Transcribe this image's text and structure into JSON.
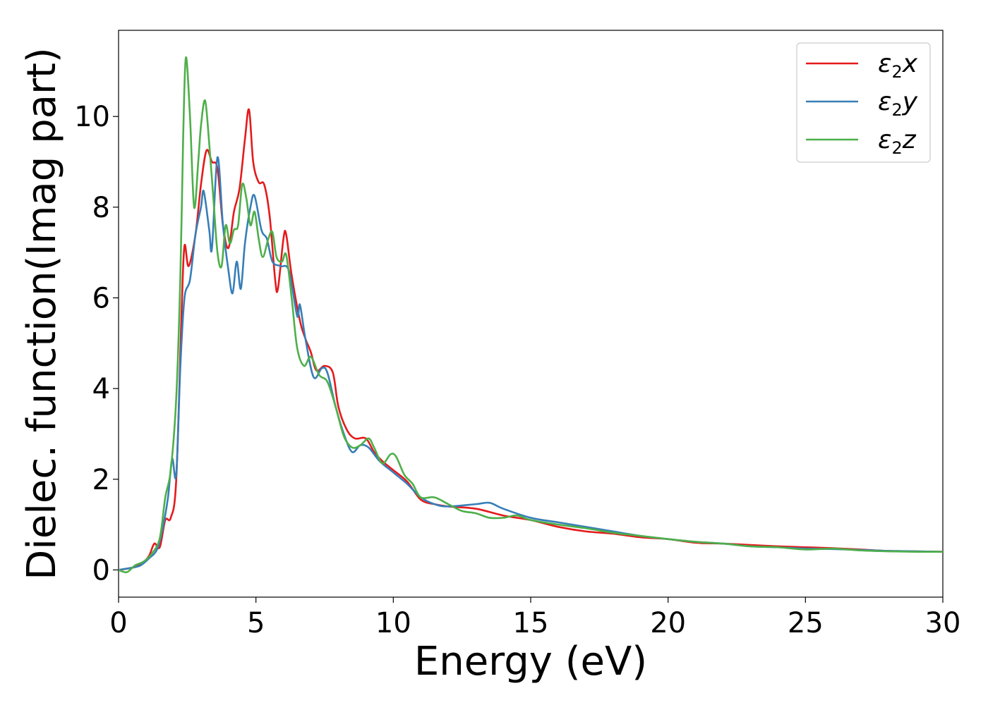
{
  "chart_data": {
    "type": "line",
    "title": "",
    "xlabel": "Energy (eV)",
    "ylabel": "Dielec. function(Imag part)",
    "xlim": [
      0,
      30
    ],
    "ylim": [
      -0.6,
      11.9
    ],
    "xticks": [
      0,
      5,
      10,
      15,
      20,
      25,
      30
    ],
    "yticks": [
      0,
      2,
      4,
      6,
      8,
      10
    ],
    "grid": false,
    "legend_position": "top-right",
    "series": [
      {
        "name": "ε₂x",
        "label_base": "ε",
        "label_sub": "2",
        "label_suffix": "x",
        "color": "#e41a1c",
        "points": [
          [
            0,
            0
          ],
          [
            0.5,
            0.05
          ],
          [
            0.8,
            0.12
          ],
          [
            1.1,
            0.3
          ],
          [
            1.3,
            0.58
          ],
          [
            1.5,
            0.5
          ],
          [
            1.7,
            1.1
          ],
          [
            1.9,
            1.15
          ],
          [
            2.1,
            2.0
          ],
          [
            2.3,
            5.8
          ],
          [
            2.4,
            7.15
          ],
          [
            2.55,
            6.7
          ],
          [
            2.8,
            7.4
          ],
          [
            3.0,
            8.5
          ],
          [
            3.2,
            9.25
          ],
          [
            3.4,
            9.0
          ],
          [
            3.6,
            8.85
          ],
          [
            3.8,
            7.6
          ],
          [
            4.0,
            7.1
          ],
          [
            4.2,
            7.9
          ],
          [
            4.4,
            8.4
          ],
          [
            4.6,
            9.5
          ],
          [
            4.75,
            10.15
          ],
          [
            4.9,
            9.0
          ],
          [
            5.1,
            8.55
          ],
          [
            5.3,
            8.5
          ],
          [
            5.5,
            7.8
          ],
          [
            5.7,
            6.4
          ],
          [
            5.8,
            6.2
          ],
          [
            6.0,
            7.3
          ],
          [
            6.1,
            7.4
          ],
          [
            6.3,
            6.5
          ],
          [
            6.6,
            5.5
          ],
          [
            6.8,
            5.1
          ],
          [
            7.0,
            4.8
          ],
          [
            7.2,
            4.4
          ],
          [
            7.5,
            4.5
          ],
          [
            7.8,
            4.35
          ],
          [
            8.0,
            3.6
          ],
          [
            8.3,
            3.1
          ],
          [
            8.6,
            2.9
          ],
          [
            9.0,
            2.9
          ],
          [
            9.3,
            2.6
          ],
          [
            9.6,
            2.4
          ],
          [
            10.0,
            2.2
          ],
          [
            10.5,
            1.95
          ],
          [
            11.0,
            1.55
          ],
          [
            11.5,
            1.45
          ],
          [
            12.0,
            1.4
          ],
          [
            13.0,
            1.35
          ],
          [
            14.0,
            1.2
          ],
          [
            15.0,
            1.1
          ],
          [
            16.0,
            0.95
          ],
          [
            17.0,
            0.85
          ],
          [
            18.0,
            0.8
          ],
          [
            19.0,
            0.72
          ],
          [
            20.0,
            0.68
          ],
          [
            21.0,
            0.6
          ],
          [
            22.0,
            0.58
          ],
          [
            23.0,
            0.55
          ],
          [
            24.0,
            0.52
          ],
          [
            25.0,
            0.5
          ],
          [
            26.0,
            0.48
          ],
          [
            27.0,
            0.45
          ],
          [
            28.0,
            0.42
          ],
          [
            29.0,
            0.41
          ],
          [
            30.0,
            0.4
          ]
        ]
      },
      {
        "name": "ε₂y",
        "label_base": "ε",
        "label_sub": "2",
        "label_suffix": "y",
        "color": "#377eb8",
        "points": [
          [
            0,
            0
          ],
          [
            0.5,
            0.05
          ],
          [
            0.8,
            0.1
          ],
          [
            1.1,
            0.25
          ],
          [
            1.4,
            0.45
          ],
          [
            1.6,
            0.9
          ],
          [
            1.8,
            1.6
          ],
          [
            1.95,
            2.45
          ],
          [
            2.1,
            2.1
          ],
          [
            2.25,
            4.5
          ],
          [
            2.4,
            6.0
          ],
          [
            2.6,
            6.4
          ],
          [
            2.8,
            7.4
          ],
          [
            3.0,
            8.0
          ],
          [
            3.1,
            8.35
          ],
          [
            3.3,
            7.5
          ],
          [
            3.4,
            7.1
          ],
          [
            3.6,
            9.1
          ],
          [
            3.8,
            7.6
          ],
          [
            4.0,
            6.6
          ],
          [
            4.15,
            6.1
          ],
          [
            4.3,
            6.8
          ],
          [
            4.45,
            6.2
          ],
          [
            4.6,
            7.2
          ],
          [
            4.8,
            8.0
          ],
          [
            4.95,
            8.25
          ],
          [
            5.2,
            7.5
          ],
          [
            5.4,
            7.3
          ],
          [
            5.6,
            6.8
          ],
          [
            5.9,
            6.7
          ],
          [
            6.2,
            6.6
          ],
          [
            6.5,
            5.6
          ],
          [
            6.6,
            5.85
          ],
          [
            6.8,
            5.1
          ],
          [
            7.1,
            4.25
          ],
          [
            7.4,
            4.45
          ],
          [
            7.6,
            4.35
          ],
          [
            7.9,
            3.6
          ],
          [
            8.2,
            3.0
          ],
          [
            8.5,
            2.6
          ],
          [
            8.8,
            2.75
          ],
          [
            9.1,
            2.7
          ],
          [
            9.5,
            2.4
          ],
          [
            10.0,
            2.15
          ],
          [
            10.5,
            1.9
          ],
          [
            11.0,
            1.6
          ],
          [
            11.5,
            1.45
          ],
          [
            12.0,
            1.4
          ],
          [
            13.0,
            1.45
          ],
          [
            13.5,
            1.48
          ],
          [
            14.0,
            1.35
          ],
          [
            15.0,
            1.15
          ],
          [
            16.0,
            1.05
          ],
          [
            17.0,
            0.95
          ],
          [
            18.0,
            0.85
          ],
          [
            19.0,
            0.75
          ],
          [
            20.0,
            0.68
          ],
          [
            21.0,
            0.62
          ],
          [
            22.0,
            0.58
          ],
          [
            23.0,
            0.52
          ],
          [
            24.0,
            0.5
          ],
          [
            25.0,
            0.47
          ],
          [
            26.0,
            0.46
          ],
          [
            27.0,
            0.44
          ],
          [
            28.0,
            0.42
          ],
          [
            29.0,
            0.41
          ],
          [
            30.0,
            0.4
          ]
        ]
      },
      {
        "name": "ε₂z",
        "label_base": "ε",
        "label_sub": "2",
        "label_suffix": "z",
        "color": "#4daf4a",
        "points": [
          [
            0,
            0
          ],
          [
            0.3,
            -0.05
          ],
          [
            0.6,
            0.1
          ],
          [
            0.9,
            0.18
          ],
          [
            1.2,
            0.35
          ],
          [
            1.5,
            0.7
          ],
          [
            1.7,
            1.6
          ],
          [
            1.9,
            2.2
          ],
          [
            2.1,
            3.8
          ],
          [
            2.25,
            6.5
          ],
          [
            2.35,
            9.5
          ],
          [
            2.45,
            11.3
          ],
          [
            2.6,
            10.0
          ],
          [
            2.75,
            8.0
          ],
          [
            2.9,
            9.0
          ],
          [
            3.0,
            9.8
          ],
          [
            3.15,
            10.35
          ],
          [
            3.3,
            9.4
          ],
          [
            3.45,
            8.2
          ],
          [
            3.6,
            7.0
          ],
          [
            3.75,
            6.7
          ],
          [
            3.9,
            7.6
          ],
          [
            4.05,
            7.2
          ],
          [
            4.2,
            7.5
          ],
          [
            4.35,
            7.6
          ],
          [
            4.5,
            8.5
          ],
          [
            4.65,
            8.2
          ],
          [
            4.8,
            7.6
          ],
          [
            4.95,
            7.9
          ],
          [
            5.1,
            7.3
          ],
          [
            5.25,
            6.9
          ],
          [
            5.45,
            7.3
          ],
          [
            5.6,
            7.45
          ],
          [
            5.75,
            6.9
          ],
          [
            5.95,
            6.8
          ],
          [
            6.1,
            6.95
          ],
          [
            6.3,
            6.0
          ],
          [
            6.5,
            4.9
          ],
          [
            6.75,
            4.5
          ],
          [
            7.0,
            4.7
          ],
          [
            7.3,
            4.3
          ],
          [
            7.6,
            4.15
          ],
          [
            7.9,
            3.6
          ],
          [
            8.2,
            2.95
          ],
          [
            8.5,
            2.7
          ],
          [
            8.8,
            2.75
          ],
          [
            9.1,
            2.9
          ],
          [
            9.3,
            2.7
          ],
          [
            9.6,
            2.35
          ],
          [
            9.9,
            2.55
          ],
          [
            10.1,
            2.5
          ],
          [
            10.4,
            2.1
          ],
          [
            10.7,
            1.9
          ],
          [
            11.0,
            1.6
          ],
          [
            11.5,
            1.6
          ],
          [
            12.0,
            1.45
          ],
          [
            12.5,
            1.3
          ],
          [
            13.0,
            1.25
          ],
          [
            13.5,
            1.15
          ],
          [
            14.0,
            1.15
          ],
          [
            14.5,
            1.2
          ],
          [
            15.0,
            1.1
          ],
          [
            16.0,
            1.0
          ],
          [
            17.0,
            0.92
          ],
          [
            18.0,
            0.82
          ],
          [
            19.0,
            0.75
          ],
          [
            20.0,
            0.68
          ],
          [
            21.0,
            0.62
          ],
          [
            22.0,
            0.58
          ],
          [
            23.0,
            0.52
          ],
          [
            24.0,
            0.5
          ],
          [
            25.0,
            0.45
          ],
          [
            26.0,
            0.47
          ],
          [
            27.0,
            0.43
          ],
          [
            28.0,
            0.41
          ],
          [
            29.0,
            0.4
          ],
          [
            30.0,
            0.4
          ]
        ]
      }
    ]
  }
}
